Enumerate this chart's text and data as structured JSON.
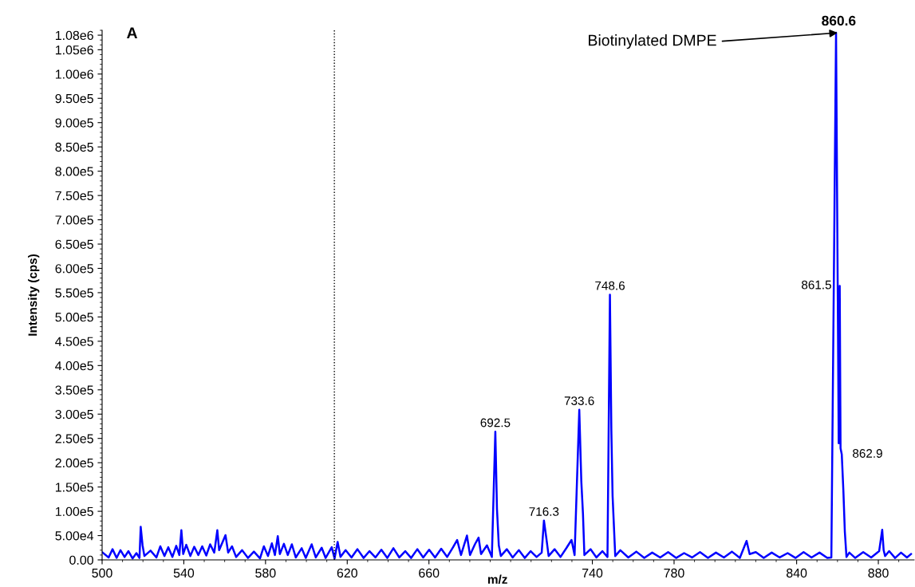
{
  "chart_data": {
    "type": "line",
    "title": "A",
    "xlabel": "m/z",
    "ylabel": "Intensity (cps)",
    "x": [
      500.3,
      503.2,
      505.1,
      507.1,
      509.0,
      511.0,
      512.9,
      514.9,
      516.8,
      518.3,
      518.9,
      519.8,
      520.7,
      523.7,
      526.6,
      528.5,
      530.5,
      532.4,
      534.4,
      536.3,
      537.8,
      538.8,
      539.7,
      541.2,
      543.2,
      545.1,
      547.1,
      549.0,
      551.0,
      552.9,
      554.9,
      556.4,
      557.3,
      558.8,
      560.4,
      561.7,
      563.6,
      565.6,
      568.5,
      571.4,
      574.3,
      577.3,
      579.2,
      581.2,
      583.1,
      584.6,
      586.0,
      587.0,
      589.0,
      590.9,
      592.9,
      594.8,
      597.7,
      599.7,
      602.6,
      604.6,
      607.5,
      609.4,
      612.4,
      613.8,
      615.3,
      616.7,
      619.2,
      622.1,
      625.0,
      628.0,
      630.9,
      633.8,
      636.7,
      639.6,
      642.6,
      645.5,
      648.4,
      651.3,
      654.3,
      657.2,
      660.1,
      663.0,
      666.0,
      668.9,
      671.8,
      673.8,
      675.7,
      678.6,
      680.1,
      682.5,
      684.3,
      685.5,
      688.4,
      690.8,
      692.5,
      693.3,
      694.2,
      695.2,
      698.1,
      701.0,
      704.0,
      706.9,
      709.8,
      712.7,
      715.2,
      716.3,
      717.4,
      718.6,
      721.5,
      724.4,
      727.4,
      729.8,
      731.3,
      733.6,
      734.6,
      735.4,
      736.1,
      739.1,
      742.0,
      744.9,
      747.4,
      748.6,
      749.3,
      749.9,
      751.2,
      753.7,
      757.6,
      761.5,
      765.4,
      769.3,
      773.2,
      777.1,
      781.0,
      784.9,
      788.8,
      792.7,
      796.6,
      800.5,
      804.4,
      808.3,
      812.2,
      815.5,
      817.0,
      820.0,
      823.9,
      827.8,
      831.7,
      835.6,
      839.5,
      843.4,
      847.3,
      851.2,
      855.0,
      857.0,
      859.3,
      860.6,
      861.1,
      861.5,
      862.1,
      862.9,
      863.6,
      864.4,
      865.8,
      868.7,
      872.6,
      876.5,
      880.4,
      881.9,
      882.6,
      883.3,
      885.3,
      888.2,
      891.1,
      894.0,
      896.0
    ],
    "values": [
      15000,
      5000,
      22000,
      4000,
      20000,
      6000,
      18000,
      3000,
      14000,
      4000,
      68000,
      30000,
      8000,
      19000,
      5000,
      28000,
      8000,
      26000,
      6000,
      29000,
      10000,
      61000,
      12000,
      31000,
      8000,
      27000,
      10000,
      28000,
      9000,
      32000,
      15000,
      61000,
      20000,
      35000,
      51000,
      15000,
      28000,
      6000,
      20000,
      4000,
      17000,
      3000,
      28000,
      8000,
      34000,
      10000,
      49000,
      12000,
      33000,
      10000,
      32000,
      5000,
      24000,
      4000,
      32000,
      5000,
      25000,
      4000,
      26000,
      3000,
      37000,
      6000,
      20000,
      5000,
      22000,
      4000,
      18000,
      5000,
      21000,
      4000,
      24000,
      5000,
      18000,
      4000,
      22000,
      5000,
      21000,
      5000,
      23000,
      6000,
      26000,
      41000,
      10000,
      50000,
      10000,
      32000,
      46000,
      12000,
      30000,
      6000,
      264000,
      105000,
      30000,
      8000,
      22000,
      5000,
      20000,
      4000,
      18000,
      6000,
      15000,
      81000,
      47000,
      8000,
      22000,
      6000,
      25000,
      41000,
      10000,
      309000,
      161000,
      95000,
      10000,
      22000,
      5000,
      18000,
      6000,
      546000,
      266000,
      132000,
      8000,
      20000,
      5000,
      17000,
      4000,
      15000,
      5000,
      16000,
      4000,
      14000,
      5000,
      16000,
      4000,
      15000,
      5000,
      17000,
      4000,
      39000,
      12000,
      16000,
      4000,
      15000,
      5000,
      14000,
      4000,
      16000,
      5000,
      15000,
      4000,
      5000,
      1085000,
      240000,
      564000,
      230000,
      217000,
      141000,
      58000,
      6000,
      15000,
      4000,
      16000,
      5000,
      18000,
      62000,
      20000,
      8000,
      18000,
      4000,
      15000,
      5000,
      12000
    ],
    "color": "#0000ff",
    "xlim": [
      500,
      897.5
    ],
    "xticks": [
      500,
      540,
      580,
      620,
      660,
      740,
      780,
      840,
      880
    ],
    "ylim": [
      0,
      1090000
    ],
    "yticks": [
      {
        "value": 0,
        "label": "0.00"
      },
      {
        "value": 50000,
        "label": "5.00e4"
      },
      {
        "value": 100000,
        "label": "1.00e5"
      },
      {
        "value": 150000,
        "label": "1.50e5"
      },
      {
        "value": 200000,
        "label": "2.00e5"
      },
      {
        "value": 250000,
        "label": "2.50e5"
      },
      {
        "value": 300000,
        "label": "3.00e5"
      },
      {
        "value": 350000,
        "label": "3.50e5"
      },
      {
        "value": 400000,
        "label": "4.00e5"
      },
      {
        "value": 450000,
        "label": "4.50e5"
      },
      {
        "value": 500000,
        "label": "5.00e5"
      },
      {
        "value": 550000,
        "label": "5.50e5"
      },
      {
        "value": 600000,
        "label": "6.00e5"
      },
      {
        "value": 650000,
        "label": "6.50e5"
      },
      {
        "value": 700000,
        "label": "7.00e5"
      },
      {
        "value": 750000,
        "label": "7.50e5"
      },
      {
        "value": 800000,
        "label": "8.00e5"
      },
      {
        "value": 850000,
        "label": "8.50e5"
      },
      {
        "value": 900000,
        "label": "9.00e5"
      },
      {
        "value": 950000,
        "label": "9.50e5"
      },
      {
        "value": 1000000,
        "label": "1.00e6"
      },
      {
        "value": 1050000,
        "label": "1.05e6"
      },
      {
        "value": 1080000,
        "label": "1.08e6"
      }
    ],
    "ref_lines": [
      {
        "axis": "x",
        "value": 613.7,
        "color": "#000000",
        "line_style": "dotted"
      }
    ],
    "annotations": [
      {
        "text": "692.5",
        "x": 692.5,
        "y": 264000
      },
      {
        "text": "716.3",
        "x": 716.3,
        "y": 81000
      },
      {
        "text": "733.6",
        "x": 733.6,
        "y": 309000
      },
      {
        "text": "748.6",
        "x": 748.6,
        "y": 546000
      },
      {
        "text": "860.6",
        "x": 860.6,
        "y": 1085000
      },
      {
        "text": "861.5",
        "x": 861.5,
        "y": 564000
      },
      {
        "text": "862.9",
        "x": 862.9,
        "y": 217000
      },
      {
        "text": "Biotinylated DMPE",
        "x": 860.6,
        "y": 1085000
      }
    ],
    "grid": false,
    "marker": "none",
    "line_style": "solid"
  }
}
